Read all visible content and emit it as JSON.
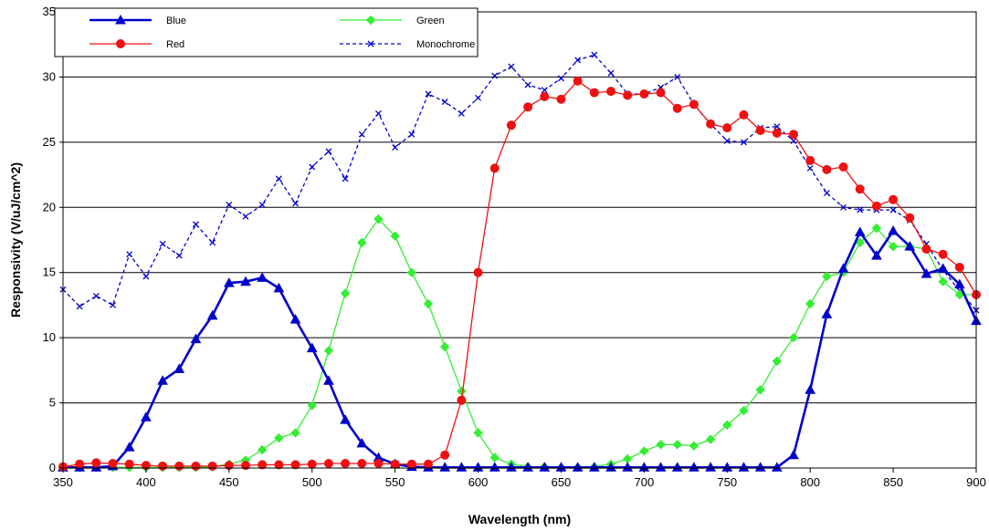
{
  "chart_data": {
    "type": "line",
    "title": "",
    "xlabel": "Wavelength (nm)",
    "ylabel": "Responsivity (V/uJ/cm^2)",
    "xlim": [
      350,
      900
    ],
    "ylim": [
      0,
      35
    ],
    "xticks": [
      "350",
      "400",
      "450",
      "500",
      "550",
      "600",
      "650",
      "700",
      "750",
      "800",
      "850",
      "900"
    ],
    "yticks": [
      "0",
      "5",
      "10",
      "15",
      "20",
      "25",
      "30",
      "35"
    ],
    "grid": "horizontal",
    "legend_position": "top-left",
    "x": [
      350,
      360,
      370,
      380,
      390,
      400,
      410,
      420,
      430,
      440,
      450,
      460,
      470,
      480,
      490,
      500,
      510,
      520,
      530,
      540,
      550,
      560,
      570,
      580,
      590,
      600,
      610,
      620,
      630,
      640,
      650,
      660,
      670,
      680,
      690,
      700,
      710,
      720,
      730,
      740,
      750,
      760,
      770,
      780,
      790,
      800,
      810,
      820,
      830,
      840,
      850,
      860,
      870,
      880,
      890,
      900
    ],
    "series": [
      {
        "name": "Blue",
        "color": "#0000CC",
        "marker": "triangle",
        "dash": "solid",
        "values": [
          0.05,
          0.05,
          0.05,
          0.15,
          1.6,
          3.9,
          6.7,
          7.6,
          9.9,
          11.7,
          14.2,
          14.3,
          14.6,
          13.8,
          11.4,
          9.2,
          6.7,
          3.7,
          1.9,
          0.8,
          0.3,
          0.1,
          0.05,
          0.05,
          0.05,
          0.05,
          0.05,
          0.05,
          0.05,
          0.05,
          0.05,
          0.05,
          0.05,
          0.05,
          0.05,
          0.05,
          0.05,
          0.05,
          0.05,
          0.05,
          0.05,
          0.05,
          0.05,
          0.05,
          1.0,
          6.0,
          11.8,
          15.3,
          18.1,
          16.3,
          18.2,
          17.0,
          14.9,
          15.3,
          14.1,
          11.3
        ]
      },
      {
        "name": "Green",
        "color": "#33EE33",
        "marker": "diamond",
        "dash": "solid",
        "values": [
          0.05,
          0.05,
          0.05,
          0.05,
          0.05,
          0.05,
          0.05,
          0.05,
          0.05,
          0.1,
          0.3,
          0.6,
          1.4,
          2.3,
          2.7,
          4.8,
          9.0,
          13.4,
          17.3,
          19.1,
          17.8,
          15.0,
          12.6,
          9.3,
          5.9,
          2.7,
          0.8,
          0.3,
          0.1,
          0.1,
          0.05,
          0.05,
          0.1,
          0.3,
          0.7,
          1.3,
          1.8,
          1.8,
          1.7,
          2.2,
          3.3,
          4.4,
          6.0,
          8.2,
          10.0,
          12.6,
          14.7,
          15.0,
          17.3,
          18.4,
          17.0,
          17.0,
          16.8,
          14.3,
          13.3,
          13.3
        ]
      },
      {
        "name": "Red",
        "color": "#EE1111",
        "marker": "circle",
        "dash": "solid",
        "values": [
          0.1,
          0.3,
          0.4,
          0.35,
          0.3,
          0.2,
          0.15,
          0.15,
          0.15,
          0.15,
          0.2,
          0.2,
          0.25,
          0.25,
          0.25,
          0.3,
          0.35,
          0.35,
          0.35,
          0.35,
          0.3,
          0.3,
          0.3,
          1.0,
          5.2,
          15.0,
          23.0,
          26.3,
          27.7,
          28.5,
          28.3,
          29.7,
          28.8,
          28.9,
          28.6,
          28.7,
          28.8,
          27.6,
          27.9,
          26.4,
          26.1,
          27.1,
          25.9,
          25.7,
          25.6,
          23.6,
          22.9,
          23.1,
          21.4,
          20.1,
          20.6,
          19.2,
          16.8,
          16.4,
          15.4,
          13.3
        ]
      },
      {
        "name": "Monochrome",
        "color": "#0000CC",
        "marker": "x",
        "dash": "dashed",
        "values": [
          13.7,
          12.4,
          13.2,
          12.5,
          16.4,
          14.7,
          17.2,
          16.3,
          18.7,
          17.3,
          20.2,
          19.3,
          20.2,
          22.2,
          20.3,
          23.1,
          24.3,
          22.2,
          25.6,
          27.2,
          24.6,
          25.6,
          28.7,
          28.1,
          27.2,
          28.4,
          30.1,
          30.8,
          29.4,
          29.0,
          29.9,
          31.3,
          31.7,
          30.3,
          28.7,
          28.7,
          29.2,
          30.0,
          27.9,
          26.4,
          25.1,
          25.0,
          26.1,
          26.2,
          25.1,
          23.0,
          21.1,
          20.0,
          19.8,
          19.8,
          19.8,
          19.0,
          17.2,
          15.2,
          13.6,
          12.1
        ]
      }
    ]
  }
}
